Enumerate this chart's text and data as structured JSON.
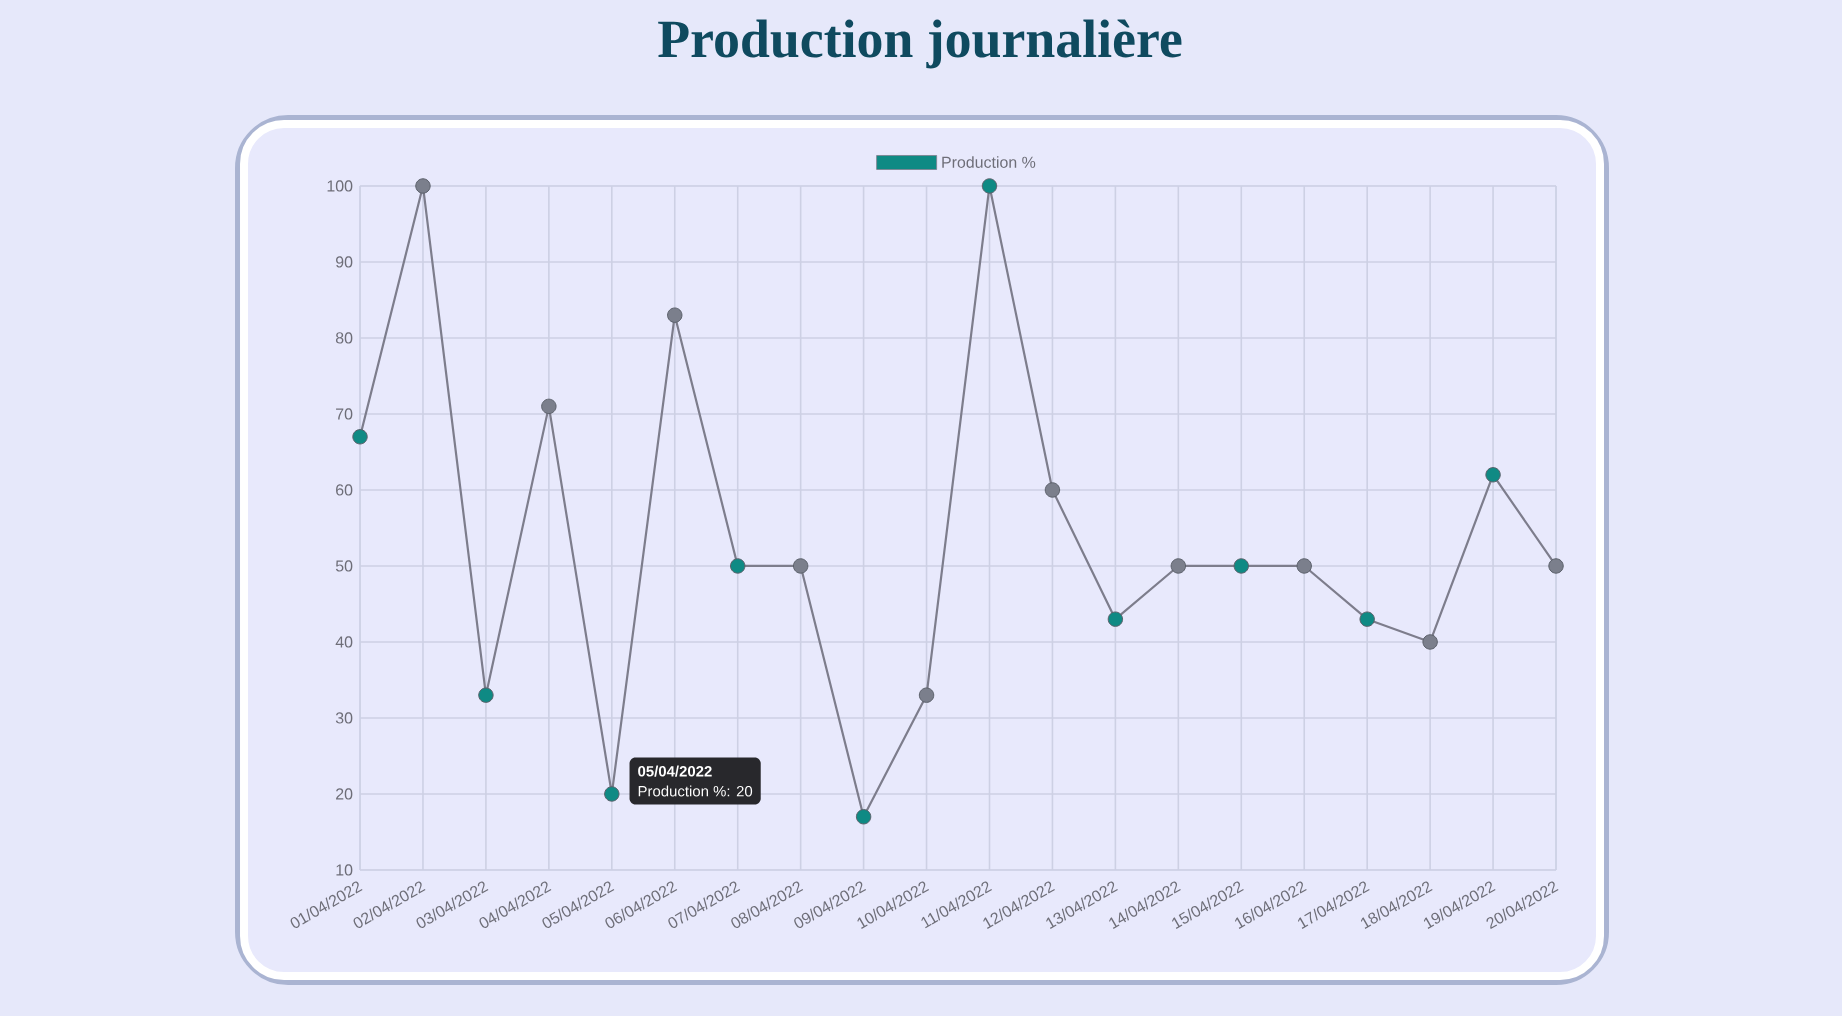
{
  "chart_data": {
    "type": "line",
    "title": "Production journalière",
    "categories": [
      "01/04/2022",
      "02/04/2022",
      "03/04/2022",
      "04/04/2022",
      "05/04/2022",
      "06/04/2022",
      "07/04/2022",
      "08/04/2022",
      "09/04/2022",
      "10/04/2022",
      "11/04/2022",
      "12/04/2022",
      "13/04/2022",
      "14/04/2022",
      "15/04/2022",
      "16/04/2022",
      "17/04/2022",
      "18/04/2022",
      "19/04/2022",
      "20/04/2022"
    ],
    "series": [
      {
        "name": "Production %",
        "color": "#7d7d8c",
        "values": [
          67,
          100,
          33,
          71,
          20,
          83,
          50,
          50,
          17,
          33,
          100,
          60,
          43,
          50,
          50,
          50,
          43,
          40,
          62,
          50
        ],
        "colors": [
          "#0f8a84",
          "#7b7f8c",
          "#0f8a84",
          "#7b7f8c",
          "#0f8a84",
          "#7b7f8c",
          "#0f8a84",
          "#7b7f8c",
          "#0f8a84",
          "#7b7f8c",
          "#0f8a84",
          "#7b7f8c",
          "#0f8a84",
          "#7b7f8c",
          "#0f8a84",
          "#7b7f8c",
          "#0f8a84",
          "#7b7f8c",
          "#0f8a84",
          "#7b7f8c"
        ]
      }
    ],
    "ylim": [
      10,
      100
    ],
    "yticks": [
      10,
      20,
      30,
      40,
      50,
      60,
      70,
      80,
      90,
      100
    ],
    "grid": true,
    "legend": "top",
    "marker": "circle",
    "line_style": "solid",
    "annotations": [
      "05/04/2022",
      "Production %: 20"
    ]
  }
}
